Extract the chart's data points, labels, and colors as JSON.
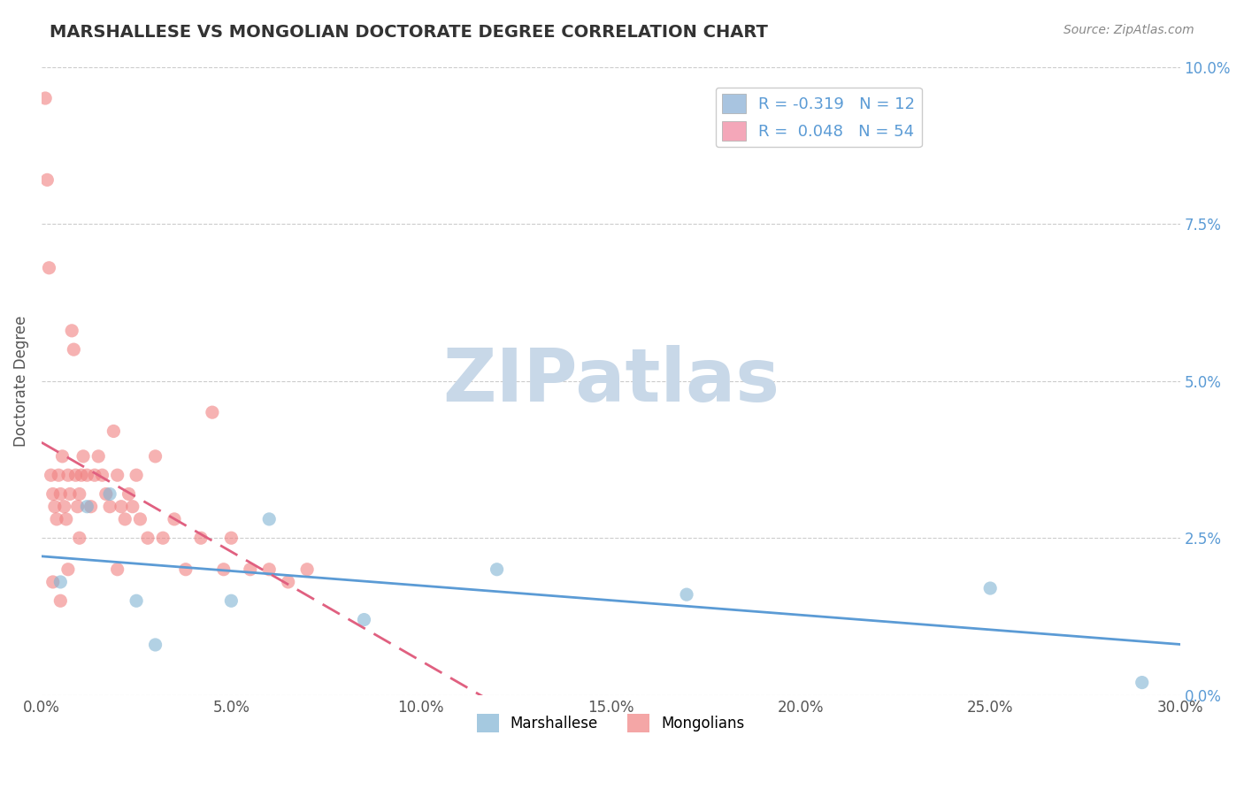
{
  "title": "MARSHALLESE VS MONGOLIAN DOCTORATE DEGREE CORRELATION CHART",
  "source": "Source: ZipAtlas.com",
  "xlabel_ticks": [
    "0.0%",
    "5.0%",
    "10.0%",
    "15.0%",
    "20.0%",
    "25.0%",
    "30.0%"
  ],
  "xlabel_vals": [
    0.0,
    5.0,
    10.0,
    15.0,
    20.0,
    25.0,
    30.0
  ],
  "ylabel_ticks_right": [
    "0.0%",
    "2.5%",
    "5.0%",
    "7.5%",
    "10.0%"
  ],
  "ylabel_vals": [
    0.0,
    2.5,
    5.0,
    7.5,
    10.0
  ],
  "xlim": [
    0,
    30
  ],
  "ylim": [
    0,
    10
  ],
  "legend_label1": "R = -0.319   N = 12",
  "legend_label2": "R =  0.048   N = 54",
  "legend_color1": "#a8c4e0",
  "legend_color2": "#f4a7b9",
  "dot_color1": "#7fb3d3",
  "dot_color2": "#f08080",
  "dot_alpha": 0.6,
  "dot_size": 120,
  "trendline1_color": "#5b9bd5",
  "trendline2_color": "#e06080",
  "watermark": "ZIPatlas",
  "watermark_color": "#c8d8e8",
  "watermark_fontsize": 60,
  "ylabel": "Doctorate Degree",
  "background_color": "#ffffff",
  "grid_color": "#cccccc",
  "marshallese_x": [
    0.5,
    1.2,
    1.8,
    2.5,
    3.0,
    5.0,
    6.0,
    8.5,
    12.0,
    17.0,
    25.0,
    29.0
  ],
  "marshallese_y": [
    1.8,
    3.0,
    3.2,
    1.5,
    0.8,
    1.5,
    2.8,
    1.2,
    2.0,
    1.6,
    1.7,
    0.2
  ],
  "mongolians_x": [
    0.1,
    0.15,
    0.2,
    0.25,
    0.3,
    0.35,
    0.4,
    0.45,
    0.5,
    0.55,
    0.6,
    0.65,
    0.7,
    0.75,
    0.8,
    0.85,
    0.9,
    0.95,
    1.0,
    1.05,
    1.1,
    1.2,
    1.3,
    1.4,
    1.5,
    1.6,
    1.7,
    1.8,
    1.9,
    2.0,
    2.1,
    2.2,
    2.3,
    2.4,
    2.5,
    2.6,
    2.8,
    3.0,
    3.2,
    3.5,
    3.8,
    4.2,
    4.5,
    5.0,
    5.5,
    6.0,
    6.5,
    7.0,
    0.3,
    0.5,
    0.7,
    1.0,
    2.0,
    4.8
  ],
  "mongolians_y": [
    9.5,
    8.2,
    6.8,
    3.5,
    3.2,
    3.0,
    2.8,
    3.5,
    3.2,
    3.8,
    3.0,
    2.8,
    3.5,
    3.2,
    5.8,
    5.5,
    3.5,
    3.0,
    3.2,
    3.5,
    3.8,
    3.5,
    3.0,
    3.5,
    3.8,
    3.5,
    3.2,
    3.0,
    4.2,
    3.5,
    3.0,
    2.8,
    3.2,
    3.0,
    3.5,
    2.8,
    2.5,
    3.8,
    2.5,
    2.8,
    2.0,
    2.5,
    4.5,
    2.5,
    2.0,
    2.0,
    1.8,
    2.0,
    1.8,
    1.5,
    2.0,
    2.5,
    2.0,
    2.0
  ]
}
